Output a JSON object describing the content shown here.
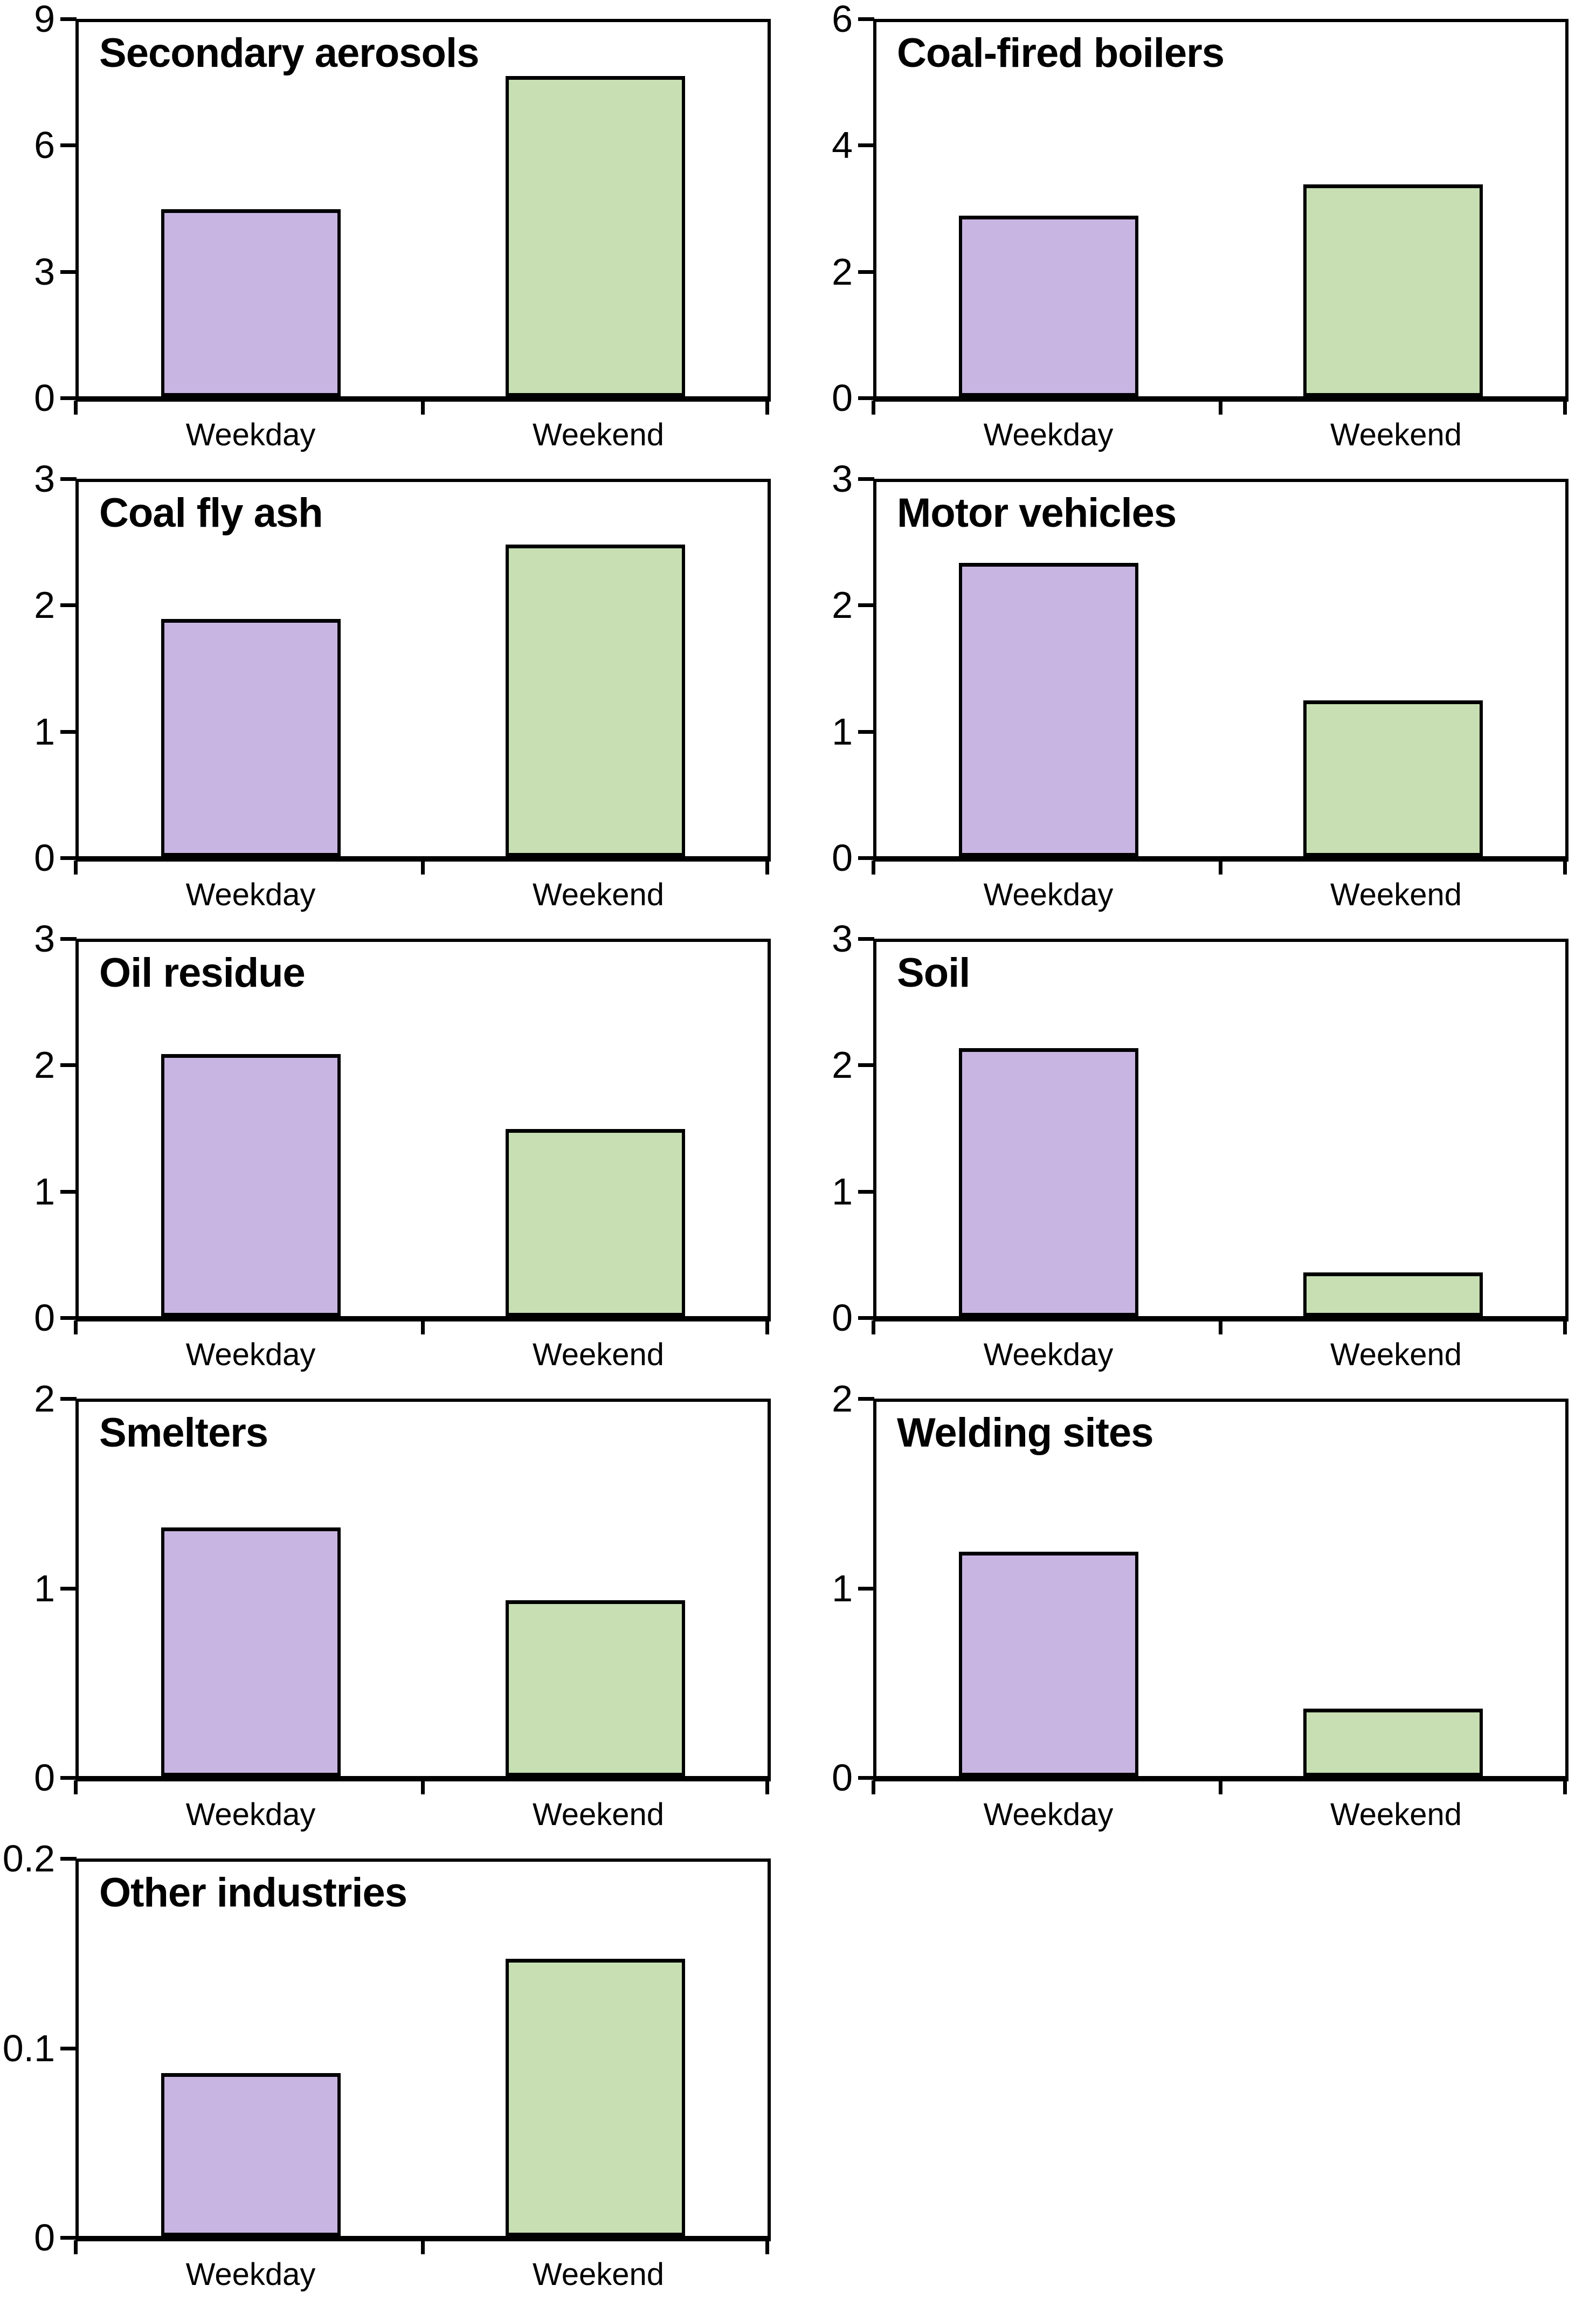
{
  "page": {
    "background": "#ffffff"
  },
  "colors": {
    "weekday_fill": "#c9b5e2",
    "weekend_fill": "#c7dfb2",
    "bar_border": "#000000",
    "axis_color": "#000000",
    "text_color": "#000000"
  },
  "categories": [
    "Weekday",
    "Weekend"
  ],
  "chart_data": [
    {
      "type": "bar",
      "title": "Secondary aerosols",
      "categories": [
        "Weekday",
        "Weekend"
      ],
      "values": [
        4.5,
        7.7
      ],
      "ylim": [
        0,
        9
      ],
      "yticks": [
        "0",
        "3",
        "6",
        "9"
      ],
      "xlabel": "",
      "ylabel": "",
      "grid": false
    },
    {
      "type": "bar",
      "title": "Coal-fired boilers",
      "categories": [
        "Weekday",
        "Weekend"
      ],
      "values": [
        2.9,
        3.4
      ],
      "ylim": [
        0,
        6
      ],
      "yticks": [
        "0",
        "2",
        "4",
        "6"
      ],
      "xlabel": "",
      "ylabel": "",
      "grid": false
    },
    {
      "type": "bar",
      "title": "Coal fly ash",
      "categories": [
        "Weekday",
        "Weekend"
      ],
      "values": [
        1.9,
        2.5
      ],
      "ylim": [
        0,
        3
      ],
      "yticks": [
        "0",
        "1",
        "2",
        "3"
      ],
      "xlabel": "",
      "ylabel": "",
      "grid": false
    },
    {
      "type": "bar",
      "title": "Motor vehicles",
      "categories": [
        "Weekday",
        "Weekend"
      ],
      "values": [
        2.35,
        1.25
      ],
      "ylim": [
        0,
        3
      ],
      "yticks": [
        "0",
        "1",
        "2",
        "3"
      ],
      "xlabel": "",
      "ylabel": "",
      "grid": false
    },
    {
      "type": "bar",
      "title": "Oil residue",
      "categories": [
        "Weekday",
        "Weekend"
      ],
      "values": [
        2.1,
        1.5
      ],
      "ylim": [
        0,
        3
      ],
      "yticks": [
        "0",
        "1",
        "2",
        "3"
      ],
      "xlabel": "",
      "ylabel": "",
      "grid": false
    },
    {
      "type": "bar",
      "title": "Soil",
      "categories": [
        "Weekday",
        "Weekend"
      ],
      "values": [
        2.15,
        0.35
      ],
      "ylim": [
        0,
        3
      ],
      "yticks": [
        "0",
        "1",
        "2",
        "3"
      ],
      "xlabel": "",
      "ylabel": "",
      "grid": false
    },
    {
      "type": "bar",
      "title": "Smelters",
      "categories": [
        "Weekday",
        "Weekend"
      ],
      "values": [
        1.33,
        0.94
      ],
      "ylim": [
        0,
        2
      ],
      "yticks": [
        "0",
        "1",
        "2"
      ],
      "xlabel": "",
      "ylabel": "",
      "grid": false
    },
    {
      "type": "bar",
      "title": "Welding sites",
      "categories": [
        "Weekday",
        "Weekend"
      ],
      "values": [
        1.2,
        0.36
      ],
      "ylim": [
        0,
        2
      ],
      "yticks": [
        "0",
        "1",
        "2"
      ],
      "xlabel": "",
      "ylabel": "",
      "grid": false
    },
    {
      "type": "bar",
      "title": "Other industries",
      "categories": [
        "Weekday",
        "Weekend"
      ],
      "values": [
        0.087,
        0.148
      ],
      "ylim": [
        0,
        0.2
      ],
      "yticks": [
        "0",
        "0.1",
        "0.2"
      ],
      "xlabel": "",
      "ylabel": "",
      "grid": false
    }
  ]
}
